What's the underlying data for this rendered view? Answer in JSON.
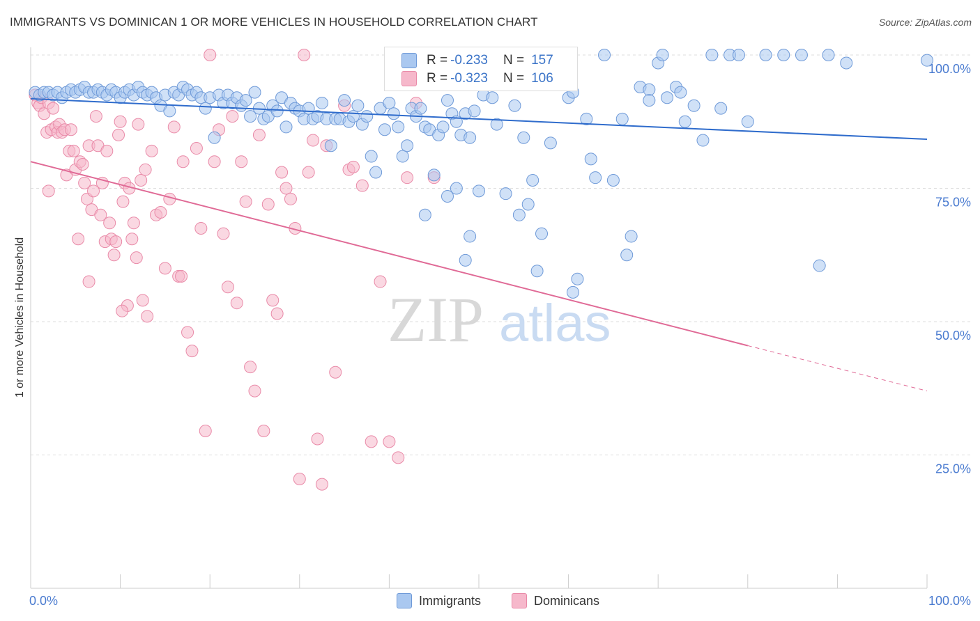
{
  "title": "IMMIGRANTS VS DOMINICAN 1 OR MORE VEHICLES IN HOUSEHOLD CORRELATION CHART",
  "source": "Source: ZipAtlas.com",
  "watermark": {
    "zip": "ZIP",
    "atlas": "atlas"
  },
  "legend_top": {
    "rows": [
      {
        "r_label": "R =",
        "r_value": "-0.233",
        "n_label": "N =",
        "n_value": "157"
      },
      {
        "r_label": "R =",
        "r_value": "-0.323",
        "n_label": "N =",
        "n_value": "106"
      }
    ]
  },
  "legend_bottom": {
    "items": [
      "Immigrants",
      "Dominicans"
    ]
  },
  "colors": {
    "immigrants_fill": "#aac8f0",
    "immigrants_stroke": "#6f9ad8",
    "immigrants_line": "#2f6ccc",
    "dominicans_fill": "#f6b8cb",
    "dominicans_stroke": "#e98aa8",
    "dominicans_line": "#e06a96",
    "axis_label": "#4a7bd0",
    "grid": "#dddddd"
  },
  "chart_data": {
    "type": "scatter",
    "title": "IMMIGRANTS VS DOMINICAN 1 OR MORE VEHICLES IN HOUSEHOLD CORRELATION CHART",
    "xlabel": "",
    "ylabel": "1 or more Vehicles in Household",
    "xlim": [
      0,
      100
    ],
    "ylim": [
      0,
      100
    ],
    "x_tick_labels": [
      "0.0%",
      "100.0%"
    ],
    "y_tick_labels": [
      "25.0%",
      "50.0%",
      "75.0%",
      "100.0%"
    ],
    "y_ticks": [
      25,
      50,
      75,
      100
    ],
    "grid": true,
    "legend_position": "top-center",
    "series": [
      {
        "name": "Immigrants",
        "R": -0.233,
        "N": 157,
        "trend": {
          "x": [
            0,
            100
          ],
          "y": [
            91.8,
            84.2
          ]
        },
        "points": [
          [
            0.5,
            93
          ],
          [
            1,
            92.5
          ],
          [
            1.5,
            93
          ],
          [
            2,
            93
          ],
          [
            2.5,
            92.5
          ],
          [
            3,
            93
          ],
          [
            3.5,
            92
          ],
          [
            4,
            93
          ],
          [
            4.5,
            93.5
          ],
          [
            5,
            93
          ],
          [
            5.5,
            93.5
          ],
          [
            6,
            94
          ],
          [
            6.5,
            93
          ],
          [
            7,
            93
          ],
          [
            7.5,
            93.5
          ],
          [
            8,
            93
          ],
          [
            8.5,
            92.5
          ],
          [
            9,
            93.5
          ],
          [
            9.5,
            93
          ],
          [
            10,
            92
          ],
          [
            10.5,
            93
          ],
          [
            11,
            93.5
          ],
          [
            11.5,
            92.5
          ],
          [
            12,
            94
          ],
          [
            12.5,
            93
          ],
          [
            13,
            92.5
          ],
          [
            13.5,
            93
          ],
          [
            14,
            92
          ],
          [
            14.5,
            90.5
          ],
          [
            15,
            92.5
          ],
          [
            15.5,
            89.5
          ],
          [
            16,
            93
          ],
          [
            16.5,
            92.5
          ],
          [
            17,
            94
          ],
          [
            17.5,
            93.5
          ],
          [
            18,
            92.5
          ],
          [
            18.5,
            93
          ],
          [
            19,
            92
          ],
          [
            19.5,
            90
          ],
          [
            20,
            92
          ],
          [
            20.5,
            84.5
          ],
          [
            21,
            92.5
          ],
          [
            21.5,
            91
          ],
          [
            22,
            92.5
          ],
          [
            22.5,
            91
          ],
          [
            23,
            92
          ],
          [
            23.5,
            90.5
          ],
          [
            24,
            91.5
          ],
          [
            24.5,
            88.5
          ],
          [
            25,
            93
          ],
          [
            25.5,
            90
          ],
          [
            26,
            88
          ],
          [
            26.5,
            88.5
          ],
          [
            27,
            90.5
          ],
          [
            27.5,
            89.5
          ],
          [
            28,
            92
          ],
          [
            28.5,
            86.5
          ],
          [
            29,
            91
          ],
          [
            29.5,
            90
          ],
          [
            30,
            89.5
          ],
          [
            30.5,
            88
          ],
          [
            31,
            90
          ],
          [
            31.5,
            88
          ],
          [
            32,
            88.5
          ],
          [
            32.5,
            91
          ],
          [
            33,
            88
          ],
          [
            33.5,
            83
          ],
          [
            34,
            88
          ],
          [
            34.5,
            88
          ],
          [
            35,
            91.5
          ],
          [
            35.5,
            87.5
          ],
          [
            36,
            88.5
          ],
          [
            36.5,
            90.5
          ],
          [
            37,
            87
          ],
          [
            37.5,
            88.5
          ],
          [
            38,
            81
          ],
          [
            38.5,
            78
          ],
          [
            39,
            90
          ],
          [
            39.5,
            86
          ],
          [
            40,
            91
          ],
          [
            40.5,
            89
          ],
          [
            41,
            86.5
          ],
          [
            41.5,
            81
          ],
          [
            42,
            83
          ],
          [
            42.5,
            90
          ],
          [
            43,
            88.5
          ],
          [
            43.5,
            90
          ],
          [
            44,
            86.5
          ],
          [
            44.5,
            86
          ],
          [
            45,
            77.5
          ],
          [
            45.5,
            85
          ],
          [
            46,
            86.5
          ],
          [
            46.5,
            91.5
          ],
          [
            47,
            89
          ],
          [
            47.5,
            87.5
          ],
          [
            48,
            85
          ],
          [
            48.5,
            89
          ],
          [
            49,
            84.5
          ],
          [
            49.5,
            89.5
          ],
          [
            50.5,
            92.5
          ],
          [
            51,
            95
          ],
          [
            52,
            87
          ],
          [
            53,
            74
          ],
          [
            54,
            90.5
          ],
          [
            54.5,
            70
          ],
          [
            55,
            84.5
          ],
          [
            55.5,
            72
          ],
          [
            56,
            76.5
          ],
          [
            57,
            66.5
          ],
          [
            58,
            83.5
          ],
          [
            59,
            95
          ],
          [
            60,
            92
          ],
          [
            60.5,
            93
          ],
          [
            61,
            58
          ],
          [
            62,
            88
          ],
          [
            62.5,
            80.5
          ],
          [
            63,
            77
          ],
          [
            64,
            100
          ],
          [
            65,
            76.5
          ],
          [
            66,
            88
          ],
          [
            67,
            66
          ],
          [
            68,
            94
          ],
          [
            69,
            93.5
          ],
          [
            70,
            98.5
          ],
          [
            71,
            92
          ],
          [
            72,
            94
          ],
          [
            73,
            87.5
          ],
          [
            74,
            90.5
          ],
          [
            75,
            84
          ],
          [
            76,
            100
          ],
          [
            78,
            100
          ],
          [
            79,
            100
          ],
          [
            80,
            87.5
          ],
          [
            82,
            100
          ],
          [
            84,
            100
          ],
          [
            86,
            100
          ],
          [
            88,
            60.5
          ],
          [
            89,
            100
          ],
          [
            91,
            98.5
          ],
          [
            51,
            96
          ],
          [
            50,
            74.5
          ],
          [
            49,
            66
          ],
          [
            48.5,
            61.5
          ],
          [
            51.5,
            92
          ],
          [
            47.5,
            75
          ],
          [
            46.5,
            73.5
          ],
          [
            44,
            70
          ],
          [
            56.5,
            59.5
          ],
          [
            60.5,
            55.5
          ],
          [
            66.5,
            62.5
          ],
          [
            69,
            91.5
          ],
          [
            72.5,
            93
          ],
          [
            77,
            90
          ],
          [
            70.5,
            100
          ],
          [
            100,
            99
          ]
        ]
      },
      {
        "name": "Dominicans",
        "R": -0.323,
        "N": 106,
        "trend": {
          "x": [
            0,
            80
          ],
          "y": [
            80,
            45.5
          ]
        },
        "trend_dashed": {
          "x": [
            80,
            100
          ],
          "y": [
            45.5,
            37
          ]
        },
        "points": [
          [
            0.5,
            92.5
          ],
          [
            0.8,
            91
          ],
          [
            1,
            90.5
          ],
          [
            1.2,
            92
          ],
          [
            1.5,
            89
          ],
          [
            1.8,
            85.5
          ],
          [
            2,
            91
          ],
          [
            2.3,
            86
          ],
          [
            2.5,
            90
          ],
          [
            2.8,
            86.5
          ],
          [
            3,
            85.5
          ],
          [
            3.2,
            87
          ],
          [
            3.5,
            85.5
          ],
          [
            3.8,
            86
          ],
          [
            4,
            77.5
          ],
          [
            4.3,
            82
          ],
          [
            4.5,
            86
          ],
          [
            4.8,
            82
          ],
          [
            5,
            78.5
          ],
          [
            5.3,
            65.5
          ],
          [
            5.5,
            80
          ],
          [
            5.8,
            79.5
          ],
          [
            6,
            76
          ],
          [
            6.3,
            73
          ],
          [
            6.5,
            83
          ],
          [
            6.8,
            71
          ],
          [
            7,
            74.5
          ],
          [
            7.3,
            88.5
          ],
          [
            7.5,
            83
          ],
          [
            7.8,
            70
          ],
          [
            8,
            76
          ],
          [
            8.3,
            65
          ],
          [
            8.5,
            82
          ],
          [
            8.8,
            68.5
          ],
          [
            9,
            65.5
          ],
          [
            9.3,
            62.5
          ],
          [
            9.5,
            65
          ],
          [
            9.8,
            85
          ],
          [
            10,
            87.5
          ],
          [
            10.3,
            72.5
          ],
          [
            10.5,
            76
          ],
          [
            10.8,
            53
          ],
          [
            11,
            75
          ],
          [
            11.3,
            65.5
          ],
          [
            11.5,
            68.5
          ],
          [
            11.8,
            62
          ],
          [
            12,
            87
          ],
          [
            12.3,
            76.5
          ],
          [
            12.5,
            54
          ],
          [
            12.8,
            78.5
          ],
          [
            13,
            51
          ],
          [
            13.5,
            82
          ],
          [
            14,
            70
          ],
          [
            14.5,
            70.5
          ],
          [
            15,
            60
          ],
          [
            15.5,
            73
          ],
          [
            16,
            86.5
          ],
          [
            16.5,
            58.5
          ],
          [
            17,
            80
          ],
          [
            17.5,
            48
          ],
          [
            18,
            44.5
          ],
          [
            18.5,
            82.5
          ],
          [
            19,
            67.5
          ],
          [
            19.5,
            29.5
          ],
          [
            20,
            100
          ],
          [
            20.5,
            80
          ],
          [
            21,
            86
          ],
          [
            21.5,
            66.5
          ],
          [
            22,
            56.5
          ],
          [
            22.5,
            88.5
          ],
          [
            23,
            53.5
          ],
          [
            23.5,
            80
          ],
          [
            24,
            72.5
          ],
          [
            24.5,
            41.5
          ],
          [
            25,
            37
          ],
          [
            25.5,
            85
          ],
          [
            26,
            29.5
          ],
          [
            26.5,
            72
          ],
          [
            27,
            54
          ],
          [
            28,
            78
          ],
          [
            28.5,
            75
          ],
          [
            29,
            73
          ],
          [
            29.5,
            67.5
          ],
          [
            30,
            20.5
          ],
          [
            30.5,
            100
          ],
          [
            31,
            78
          ],
          [
            32,
            28
          ],
          [
            32.5,
            19.5
          ],
          [
            33,
            83
          ],
          [
            34,
            40.5
          ],
          [
            35,
            90.5
          ],
          [
            35.5,
            78.5
          ],
          [
            36,
            79
          ],
          [
            37,
            75.5
          ],
          [
            38,
            27.5
          ],
          [
            39,
            57.5
          ],
          [
            40,
            27.5
          ],
          [
            41,
            24.5
          ],
          [
            42,
            77
          ],
          [
            45,
            77
          ],
          [
            43,
            91
          ],
          [
            31.5,
            84
          ],
          [
            27.5,
            51.5
          ],
          [
            10.2,
            52
          ],
          [
            6.5,
            57.5
          ],
          [
            2,
            74.5
          ],
          [
            16.8,
            58.5
          ]
        ]
      }
    ]
  }
}
